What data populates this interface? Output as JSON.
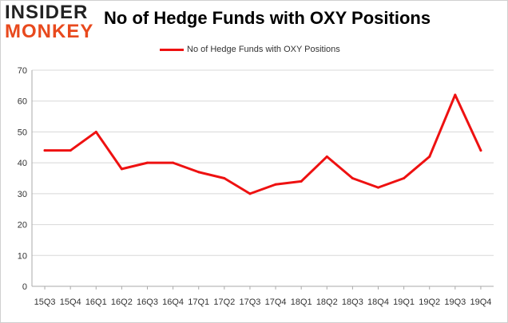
{
  "logo": {
    "top": "INSIDER",
    "bottom": "MONKEY"
  },
  "title": "No of Hedge Funds with OXY Positions",
  "colors": {
    "line": "#ee1111",
    "logo_accent": "#e8491d",
    "grid": "#d8d8d8"
  },
  "chart_data": {
    "type": "line",
    "title": "No of Hedge Funds with OXY Positions",
    "xlabel": "",
    "ylabel": "",
    "categories": [
      "15Q3",
      "15Q4",
      "16Q1",
      "16Q2",
      "16Q3",
      "16Q4",
      "17Q1",
      "17Q2",
      "17Q3",
      "17Q4",
      "18Q1",
      "18Q2",
      "18Q3",
      "18Q4",
      "19Q1",
      "19Q2",
      "19Q3",
      "19Q4"
    ],
    "series": [
      {
        "name": "No of Hedge Funds with OXY Positions",
        "values": [
          44,
          44,
          50,
          38,
          40,
          40,
          37,
          35,
          30,
          33,
          34,
          42,
          35,
          32,
          35,
          42,
          62,
          44
        ]
      }
    ],
    "ylim": [
      0,
      70
    ],
    "yticks": [
      0,
      10,
      20,
      30,
      40,
      50,
      60,
      70
    ],
    "grid": true,
    "legend": "top-center"
  }
}
